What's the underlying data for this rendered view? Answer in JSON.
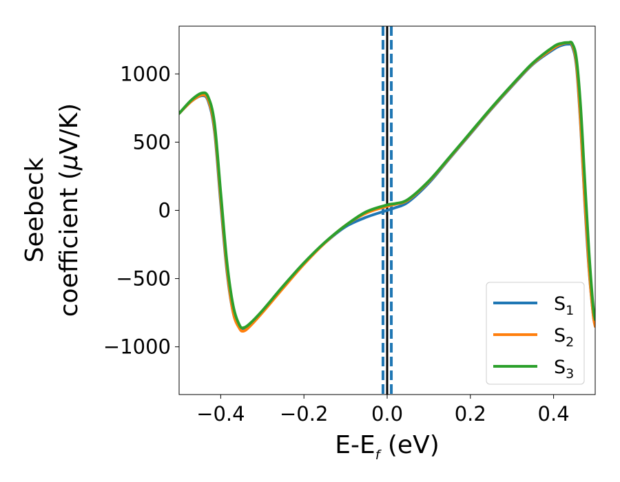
{
  "chart_data": {
    "type": "line",
    "xlabel_main": "E-E",
    "xlabel_sub": "f",
    "xlabel_unit": " (eV)",
    "ylabel_line1": "Seebeck",
    "ylabel_line2_prefix": "coefficient  (",
    "ylabel_mu": "μ",
    "ylabel_line2_suffix": "V/K)",
    "xlim": [
      -0.5,
      0.5
    ],
    "ylim": [
      -1350,
      1350
    ],
    "x_ticks": [
      -0.4,
      -0.2,
      0.0,
      0.2,
      0.4
    ],
    "x_tick_labels": [
      "−0.4",
      "−0.2",
      "0.0",
      "0.2",
      "0.4"
    ],
    "y_ticks": [
      -1000,
      -500,
      0,
      500,
      1000
    ],
    "y_tick_labels": [
      "−1000",
      "−500",
      "0",
      "500",
      "1000"
    ],
    "vlines": {
      "solid": {
        "x": 0.0,
        "color": "#000000"
      },
      "dashed": [
        {
          "x": -0.01,
          "color": "#1f77b4"
        },
        {
          "x": 0.01,
          "color": "#1f77b4"
        }
      ]
    },
    "legend_position": "lower-right",
    "series": [
      {
        "name_main": "S",
        "name_sub": "1",
        "color": "#1f77b4",
        "x": [
          -0.5,
          -0.47,
          -0.445,
          -0.43,
          -0.415,
          -0.4,
          -0.385,
          -0.37,
          -0.355,
          -0.345,
          -0.33,
          -0.3,
          -0.25,
          -0.2,
          -0.15,
          -0.1,
          -0.05,
          0.0,
          0.02,
          0.05,
          0.1,
          0.15,
          0.2,
          0.25,
          0.3,
          0.35,
          0.4,
          0.42,
          0.435,
          0.445,
          0.455,
          0.465,
          0.475,
          0.485,
          0.495,
          0.5
        ],
        "y": [
          710,
          800,
          840,
          800,
          580,
          50,
          -450,
          -750,
          -860,
          -875,
          -840,
          -740,
          -560,
          -390,
          -240,
          -120,
          -50,
          0,
          20,
          60,
          200,
          380,
          560,
          740,
          910,
          1070,
          1180,
          1210,
          1218,
          1200,
          1050,
          620,
          50,
          -430,
          -760,
          -850
        ]
      },
      {
        "name_main": "S",
        "name_sub": "2",
        "color": "#ff7f0e",
        "x": [
          -0.5,
          -0.47,
          -0.445,
          -0.43,
          -0.415,
          -0.4,
          -0.385,
          -0.37,
          -0.355,
          -0.345,
          -0.33,
          -0.3,
          -0.25,
          -0.2,
          -0.15,
          -0.1,
          -0.05,
          0.0,
          0.02,
          0.05,
          0.1,
          0.15,
          0.2,
          0.25,
          0.3,
          0.35,
          0.4,
          0.42,
          0.435,
          0.445,
          0.455,
          0.465,
          0.475,
          0.485,
          0.495,
          0.5
        ],
        "y": [
          710,
          800,
          845,
          810,
          600,
          80,
          -430,
          -750,
          -865,
          -885,
          -850,
          -750,
          -570,
          -395,
          -240,
          -110,
          -20,
          30,
          45,
          75,
          210,
          385,
          565,
          745,
          915,
          1075,
          1190,
          1220,
          1228,
          1212,
          1070,
          640,
          70,
          -420,
          -760,
          -850
        ]
      },
      {
        "name_main": "S",
        "name_sub": "3",
        "color": "#2ca02c",
        "x": [
          -0.5,
          -0.47,
          -0.445,
          -0.43,
          -0.415,
          -0.4,
          -0.385,
          -0.37,
          -0.355,
          -0.345,
          -0.33,
          -0.3,
          -0.25,
          -0.2,
          -0.15,
          -0.1,
          -0.05,
          0.0,
          0.02,
          0.05,
          0.1,
          0.15,
          0.2,
          0.25,
          0.3,
          0.35,
          0.4,
          0.42,
          0.435,
          0.445,
          0.455,
          0.465,
          0.475,
          0.485,
          0.495,
          0.5
        ],
        "y": [
          710,
          810,
          860,
          830,
          640,
          130,
          -380,
          -700,
          -840,
          -860,
          -830,
          -735,
          -555,
          -385,
          -235,
          -110,
          -10,
          40,
          50,
          80,
          215,
          390,
          570,
          750,
          920,
          1080,
          1200,
          1225,
          1230,
          1222,
          1110,
          760,
          220,
          -300,
          -700,
          -800
        ]
      }
    ]
  }
}
